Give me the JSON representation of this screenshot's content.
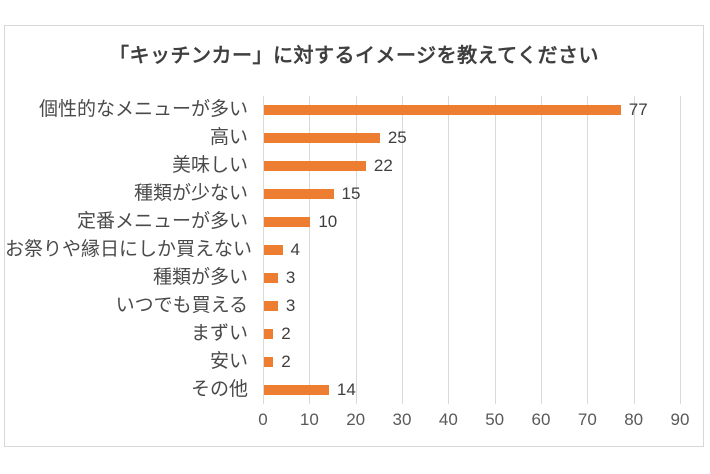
{
  "chart_data": {
    "type": "bar",
    "orientation": "horizontal",
    "title": "「キッチンカー」に対するイメージを教えてください",
    "categories": [
      "個性的なメニューが多い",
      "高い",
      "美味しい",
      "種類が少ない",
      "定番メニューが多い",
      "お祭りや縁日にしか買えない",
      "種類が多い",
      "いつでも買える",
      "まずい",
      "安い",
      "その他"
    ],
    "values": [
      77,
      25,
      22,
      15,
      10,
      4,
      3,
      3,
      2,
      2,
      14
    ],
    "xlabel": "",
    "ylabel": "",
    "xlim": [
      0,
      90
    ],
    "xticks": [
      0,
      10,
      20,
      30,
      40,
      50,
      60,
      70,
      80,
      90
    ],
    "grid": true,
    "legend_position": "none",
    "data_labels": true
  },
  "colors": {
    "bar": "#ED7D31",
    "gridline": "#d9d9d9",
    "border": "#d8d8d8",
    "title_text": "#3f3f3f",
    "category_text": "#4a4a4a",
    "value_text": "#3f3f3f",
    "tick_text": "#595959",
    "background": "#ffffff"
  }
}
